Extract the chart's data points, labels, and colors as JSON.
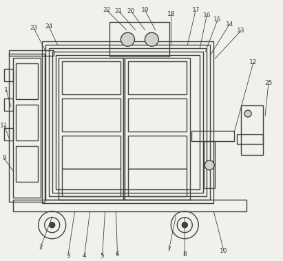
{
  "bg_color": "#f0f0ec",
  "line_color": "#404040",
  "lw": 1.0,
  "fig_width": 4.11,
  "fig_height": 3.79,
  "dpi": 100
}
